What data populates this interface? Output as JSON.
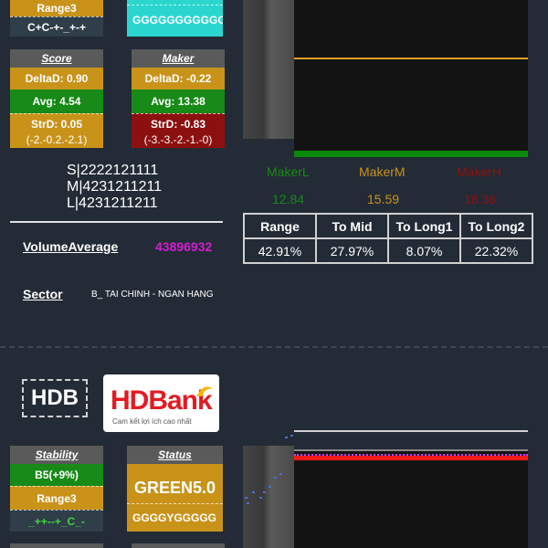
{
  "top": {
    "range_label": "Range3",
    "pattern": "C+C-+-_+-+",
    "teal_text": "GGGGGGGGGGG"
  },
  "score": {
    "title": "Score",
    "delta": "DeltaD: 0.90",
    "avg": "Avg: 4.54",
    "strd": "StrD: 0.05",
    "strd_range": "(-2.-0.2.-2.1)"
  },
  "maker_card": {
    "title": "Maker",
    "delta": "DeltaD: -0.22",
    "avg": "Avg: 13.38",
    "strd": "StrD: -0.83",
    "strd_range": "(-3.-3.-2.-1.-0)"
  },
  "codes": [
    "S|2222121111",
    "M|4231211211",
    "L|4231211211"
  ],
  "volume": {
    "label": "VolumeAverage",
    "value": "43896932"
  },
  "sector": {
    "label": "Sector",
    "value": "B_ TAI CHINH - NGAN HANG"
  },
  "makers": {
    "labels": [
      "MakerL",
      "MakerM",
      "MakerH"
    ],
    "values": [
      "12.84",
      "15.59",
      "18.36"
    ],
    "colors": [
      "#178a17",
      "#c9931a",
      "#8c1010"
    ]
  },
  "stats": {
    "headers": [
      "Range",
      "To Mid",
      "To Long1",
      "To Long2"
    ],
    "values": [
      "42.91%",
      "27.97%",
      "8.07%",
      "22.32%"
    ]
  },
  "ticker": "HDB",
  "logo": {
    "brand": "HDBank",
    "tagline": "Cam kết lợi ích cao nhất"
  },
  "stability": {
    "title": "Stability",
    "value": "B5(+9%)",
    "range_label": "Range3",
    "pattern": "_++--+_C_-"
  },
  "status": {
    "title": "Status",
    "value": "GREEN5.0",
    "pattern": "GGGGYGGGGG"
  }
}
